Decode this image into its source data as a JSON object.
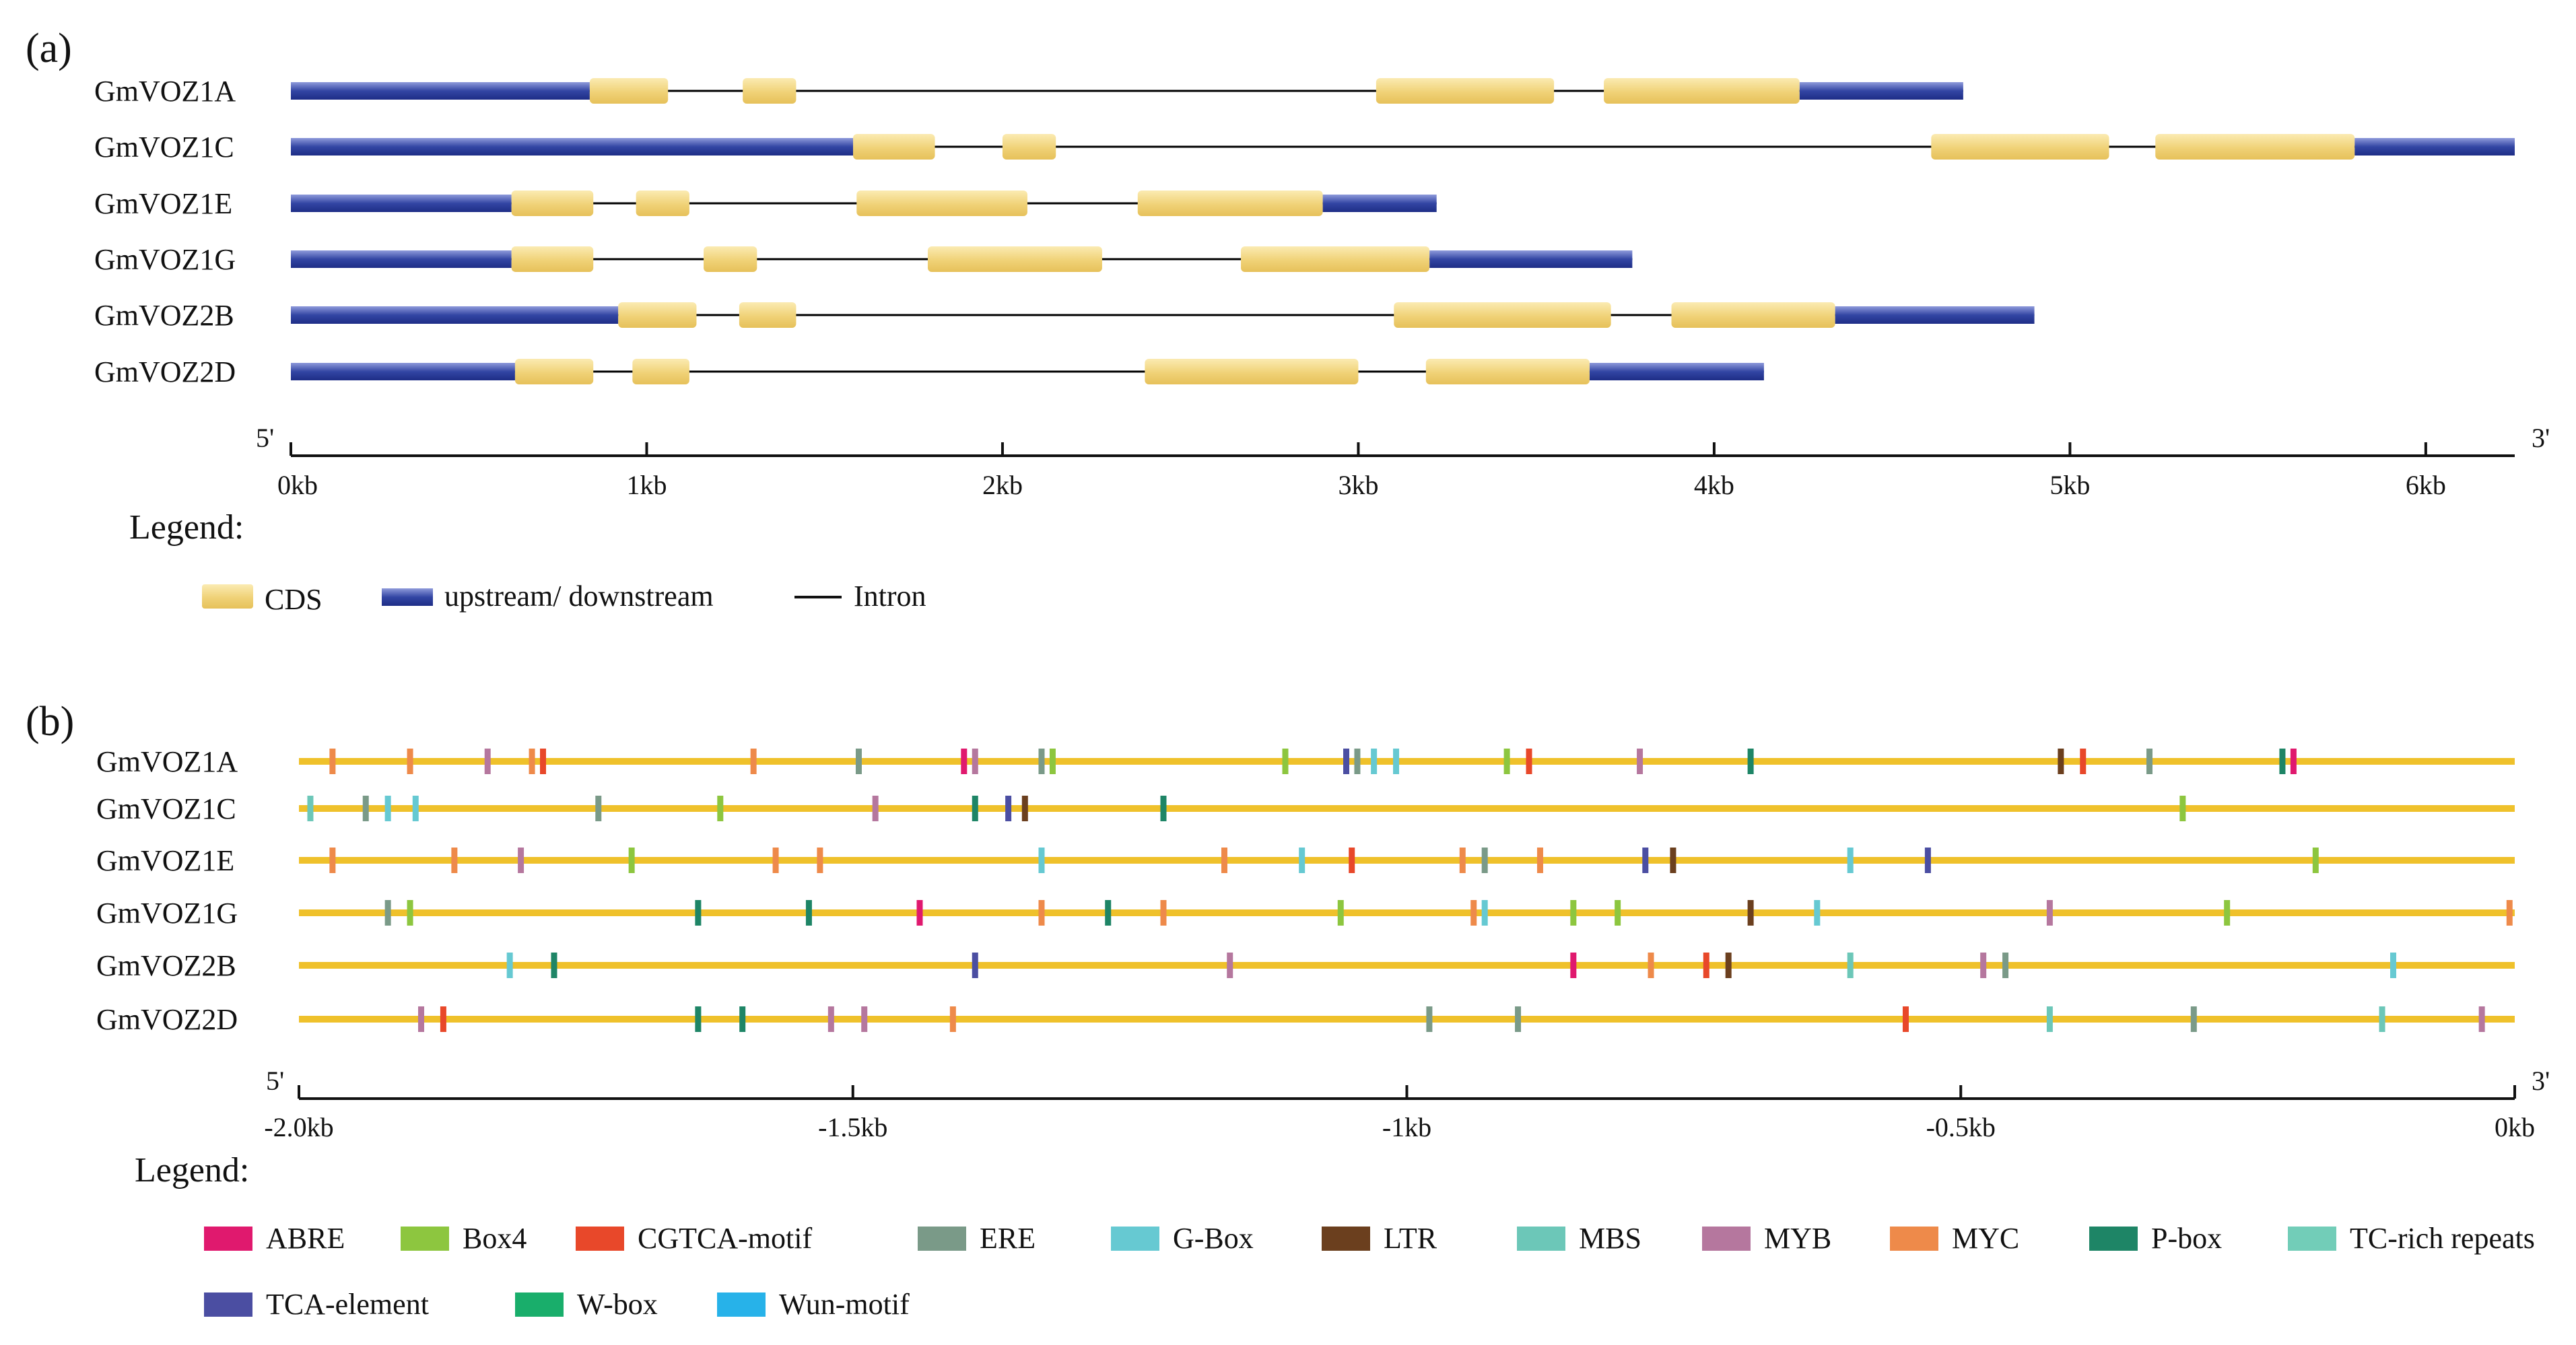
{
  "panel_a": {
    "label": "(a)",
    "genes": [
      {
        "name": "GmVOZ1A",
        "end": 4.7,
        "utr5": [
          0,
          0.84
        ],
        "cds": [
          [
            0.84,
            1.06
          ],
          [
            1.27,
            1.42
          ],
          [
            3.05,
            3.55
          ],
          [
            3.69,
            4.24
          ]
        ],
        "utr3": [
          4.24,
          4.7
        ]
      },
      {
        "name": "GmVOZ1C",
        "end": 6.25,
        "utr5": [
          0,
          1.58
        ],
        "cds": [
          [
            1.58,
            1.81
          ],
          [
            2.0,
            2.15
          ],
          [
            4.61,
            5.11
          ],
          [
            5.24,
            5.8
          ]
        ],
        "utr3": [
          5.8,
          6.25
        ]
      },
      {
        "name": "GmVOZ1E",
        "end": 3.22,
        "utr5": [
          0,
          0.62
        ],
        "cds": [
          [
            0.62,
            0.85
          ],
          [
            0.97,
            1.12
          ],
          [
            1.59,
            2.07
          ],
          [
            2.38,
            2.9
          ]
        ],
        "utr3": [
          2.9,
          3.22
        ]
      },
      {
        "name": "GmVOZ1G",
        "end": 3.77,
        "utr5": [
          0,
          0.62
        ],
        "cds": [
          [
            0.62,
            0.85
          ],
          [
            1.16,
            1.31
          ],
          [
            1.79,
            2.28
          ],
          [
            2.67,
            3.2
          ]
        ],
        "utr3": [
          3.2,
          3.77
        ]
      },
      {
        "name": "GmVOZ2B",
        "end": 4.9,
        "utr5": [
          0,
          0.92
        ],
        "cds": [
          [
            0.92,
            1.14
          ],
          [
            1.26,
            1.42
          ],
          [
            3.1,
            3.71
          ],
          [
            3.88,
            4.34
          ]
        ],
        "utr3": [
          4.34,
          4.9
        ]
      },
      {
        "name": "GmVOZ2D",
        "end": 4.14,
        "utr5": [
          0,
          0.63
        ],
        "cds": [
          [
            0.63,
            0.85
          ],
          [
            0.96,
            1.12
          ],
          [
            2.4,
            3.0
          ],
          [
            3.19,
            3.65
          ]
        ],
        "utr3": [
          3.65,
          4.14
        ]
      }
    ],
    "axis": {
      "left_end": "5'",
      "right_end": "3'",
      "range": [
        0,
        6.25
      ],
      "ticks": [
        {
          "value": 0,
          "label": "0kb"
        },
        {
          "value": 1,
          "label": "1kb"
        },
        {
          "value": 2,
          "label": "2kb"
        },
        {
          "value": 3,
          "label": "3kb"
        },
        {
          "value": 4,
          "label": "4kb"
        },
        {
          "value": 5,
          "label": "5kb"
        },
        {
          "value": 6,
          "label": "6kb"
        }
      ]
    },
    "legend_title": "Legend:",
    "legend": {
      "cds": "CDS",
      "utr": "upstream/ downstream",
      "intron": "Intron"
    },
    "colors": {
      "cds": "#F0D277",
      "cds_light": "#FBEBB2",
      "utr": "#2B3E9A",
      "utr_light": "#8E9ADB",
      "intron": "#000000"
    }
  },
  "panel_b": {
    "label": "(b)",
    "line_color": "#EFC12B",
    "axis": {
      "left_end": "5'",
      "right_end": "3'",
      "range": [
        -2.0,
        0
      ],
      "ticks": [
        {
          "value": -2.0,
          "label": "-2.0kb"
        },
        {
          "value": -1.5,
          "label": "-1.5kb"
        },
        {
          "value": -1.0,
          "label": "-1kb"
        },
        {
          "value": -0.5,
          "label": "-0.5kb"
        },
        {
          "value": 0,
          "label": "0kb"
        }
      ]
    },
    "legend_title": "Legend:",
    "elements": [
      {
        "key": "ABRE",
        "label": "ABRE",
        "color": "#E0196E"
      },
      {
        "key": "Box4",
        "label": "Box4",
        "color": "#8DC63F"
      },
      {
        "key": "CGTCA",
        "label": "CGTCA-motif",
        "color": "#E8482A"
      },
      {
        "key": "ERE",
        "label": "ERE",
        "color": "#7A9A88"
      },
      {
        "key": "GBox",
        "label": "G-Box",
        "color": "#66C9D2"
      },
      {
        "key": "LTR",
        "label": "LTR",
        "color": "#6B3F1E"
      },
      {
        "key": "MBS",
        "label": "MBS",
        "color": "#6CC7B8"
      },
      {
        "key": "MYB",
        "label": "MYB",
        "color": "#B5779E"
      },
      {
        "key": "MYC",
        "label": "MYC",
        "color": "#EE8A4A"
      },
      {
        "key": "Pbox",
        "label": "P-box",
        "color": "#1E8566"
      },
      {
        "key": "TC",
        "label": "TC-rich repeats",
        "color": "#72CDB8"
      },
      {
        "key": "TCA",
        "label": "TCA-element",
        "color": "#4B4EA2"
      },
      {
        "key": "Wbox",
        "label": "W-box",
        "color": "#19AE6B"
      },
      {
        "key": "Wun",
        "label": "Wun-motif",
        "color": "#27B2E9"
      }
    ],
    "genes": [
      {
        "name": "GmVOZ1A",
        "sites": [
          [
            -1.97,
            "MYC"
          ],
          [
            -1.9,
            "MYC"
          ],
          [
            -1.83,
            "MYB"
          ],
          [
            -1.79,
            "MYC"
          ],
          [
            -1.78,
            "CGTCA"
          ],
          [
            -1.59,
            "MYC"
          ],
          [
            -1.495,
            "ERE"
          ],
          [
            -1.4,
            "ABRE"
          ],
          [
            -1.39,
            "MYB"
          ],
          [
            -1.33,
            "ERE"
          ],
          [
            -1.32,
            "Box4"
          ],
          [
            -1.11,
            "Box4"
          ],
          [
            -1.055,
            "TCA"
          ],
          [
            -1.045,
            "ERE"
          ],
          [
            -1.03,
            "GBox"
          ],
          [
            -1.01,
            "GBox"
          ],
          [
            -0.91,
            "Box4"
          ],
          [
            -0.89,
            "CGTCA"
          ],
          [
            -0.79,
            "MYB"
          ],
          [
            -0.69,
            "Pbox"
          ],
          [
            -0.41,
            "LTR"
          ],
          [
            -0.39,
            "CGTCA"
          ],
          [
            -0.33,
            "ERE"
          ],
          [
            -0.21,
            "Pbox"
          ],
          [
            -0.2,
            "ABRE"
          ]
        ]
      },
      {
        "name": "GmVOZ1C",
        "sites": [
          [
            -1.99,
            "MBS"
          ],
          [
            -1.94,
            "ERE"
          ],
          [
            -1.92,
            "GBox"
          ],
          [
            -1.895,
            "GBox"
          ],
          [
            -1.73,
            "ERE"
          ],
          [
            -1.62,
            "Box4"
          ],
          [
            -1.48,
            "MYB"
          ],
          [
            -1.39,
            "Pbox"
          ],
          [
            -1.36,
            "TCA"
          ],
          [
            -1.345,
            "LTR"
          ],
          [
            -1.22,
            "Pbox"
          ],
          [
            -0.3,
            "Box4"
          ]
        ]
      },
      {
        "name": "GmVOZ1E",
        "sites": [
          [
            -1.97,
            "MYC"
          ],
          [
            -1.86,
            "MYC"
          ],
          [
            -1.8,
            "MYB"
          ],
          [
            -1.7,
            "Box4"
          ],
          [
            -1.57,
            "MYC"
          ],
          [
            -1.53,
            "MYC"
          ],
          [
            -1.33,
            "GBox"
          ],
          [
            -1.165,
            "MYC"
          ],
          [
            -1.095,
            "GBox"
          ],
          [
            -1.05,
            "CGTCA"
          ],
          [
            -0.95,
            "MYC"
          ],
          [
            -0.93,
            "ERE"
          ],
          [
            -0.88,
            "MYC"
          ],
          [
            -0.785,
            "TCA"
          ],
          [
            -0.76,
            "LTR"
          ],
          [
            -0.6,
            "GBox"
          ],
          [
            -0.53,
            "TCA"
          ],
          [
            -0.18,
            "Box4"
          ]
        ]
      },
      {
        "name": "GmVOZ1G",
        "sites": [
          [
            -1.92,
            "ERE"
          ],
          [
            -1.9,
            "Box4"
          ],
          [
            -1.64,
            "Pbox"
          ],
          [
            -1.54,
            "Pbox"
          ],
          [
            -1.44,
            "ABRE"
          ],
          [
            -1.33,
            "MYC"
          ],
          [
            -1.27,
            "Pbox"
          ],
          [
            -1.22,
            "MYC"
          ],
          [
            -1.06,
            "Box4"
          ],
          [
            -0.94,
            "MYC"
          ],
          [
            -0.93,
            "GBox"
          ],
          [
            -0.85,
            "Box4"
          ],
          [
            -0.81,
            "Box4"
          ],
          [
            -0.69,
            "LTR"
          ],
          [
            -0.63,
            "GBox"
          ],
          [
            -0.42,
            "MYB"
          ],
          [
            -0.26,
            "Box4"
          ],
          [
            -0.005,
            "MYC"
          ]
        ]
      },
      {
        "name": "GmVOZ2B",
        "sites": [
          [
            -1.81,
            "GBox"
          ],
          [
            -1.77,
            "Pbox"
          ],
          [
            -1.39,
            "TCA"
          ],
          [
            -1.16,
            "MYB"
          ],
          [
            -0.85,
            "ABRE"
          ],
          [
            -0.78,
            "MYC"
          ],
          [
            -0.73,
            "CGTCA"
          ],
          [
            -0.71,
            "LTR"
          ],
          [
            -0.6,
            "MBS"
          ],
          [
            -0.48,
            "MYB"
          ],
          [
            -0.46,
            "ERE"
          ],
          [
            -0.11,
            "GBox"
          ]
        ]
      },
      {
        "name": "GmVOZ2D",
        "sites": [
          [
            -1.89,
            "MYB"
          ],
          [
            -1.87,
            "CGTCA"
          ],
          [
            -1.64,
            "Pbox"
          ],
          [
            -1.6,
            "Pbox"
          ],
          [
            -1.52,
            "MYB"
          ],
          [
            -1.49,
            "MYB"
          ],
          [
            -1.41,
            "MYC"
          ],
          [
            -0.98,
            "ERE"
          ],
          [
            -0.9,
            "ERE"
          ],
          [
            -0.55,
            "CGTCA"
          ],
          [
            -0.42,
            "MBS"
          ],
          [
            -0.29,
            "ERE"
          ],
          [
            -0.12,
            "MBS"
          ],
          [
            -0.03,
            "MYB"
          ]
        ]
      }
    ]
  }
}
